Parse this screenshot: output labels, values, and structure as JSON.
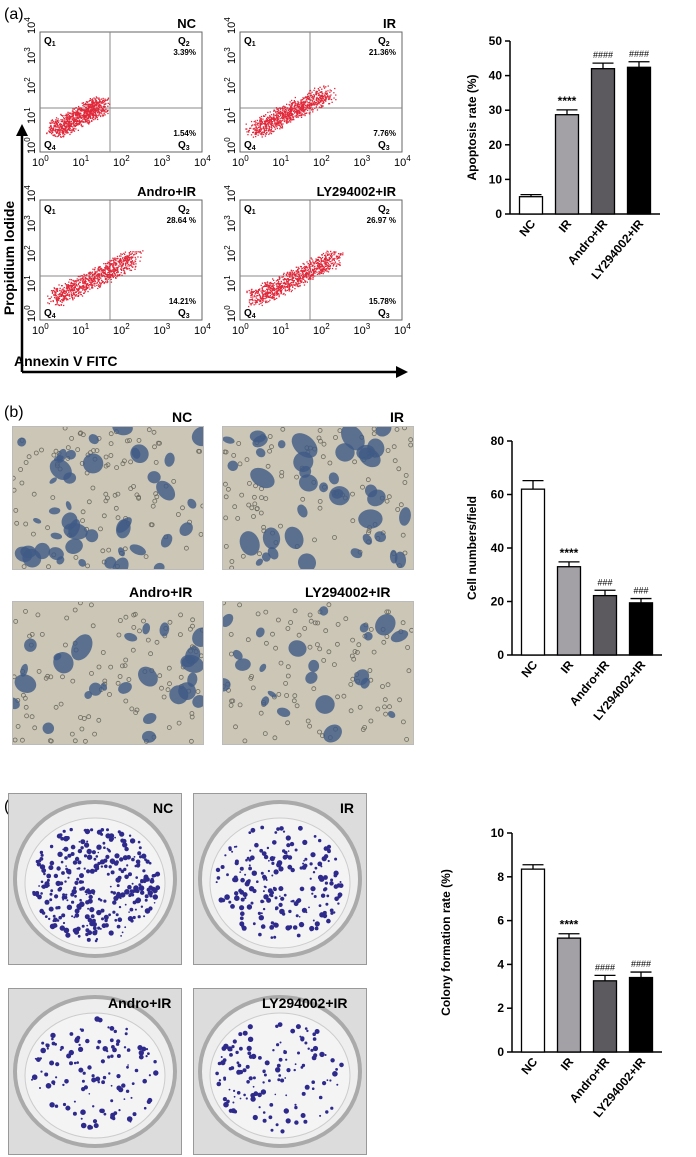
{
  "panel_a": {
    "label": "(a)",
    "y_axis_label": "Propidium Iodide",
    "x_axis_label": "Annexin V FITC",
    "quadrant_labels": [
      "Q1",
      "Q2",
      "Q3",
      "Q4"
    ],
    "tick_labels": [
      "10",
      "10",
      "10",
      "10",
      "10"
    ],
    "tick_exponents": [
      "0",
      "1",
      "2",
      "3",
      "4"
    ],
    "plots": [
      {
        "name": "NC",
        "q2": "3.39%",
        "q3": "1.54%",
        "spread": 0.2
      },
      {
        "name": "IR",
        "q2": "21.36%",
        "q3": "7.76%",
        "spread": 0.7
      },
      {
        "name": "Andro+IR",
        "q2": "28.64 %",
        "q3": "14.21%",
        "spread": 0.85
      },
      {
        "name": "LY294002+IR",
        "q2": "26.97 %",
        "q3": "15.78%",
        "spread": 0.85
      }
    ]
  },
  "panel_b": {
    "label": "(b)",
    "images": [
      "NC",
      "IR",
      "Andro+IR",
      "LY294002+IR"
    ]
  },
  "panel_c": {
    "label": "(c)",
    "images": [
      "NC",
      "IR",
      "Andro+IR",
      "LY294002+IR"
    ]
  },
  "chart_data": [
    {
      "type": "bar",
      "categories": [
        "NC",
        "IR",
        "Andro+IR",
        "LY294002+IR"
      ],
      "values": [
        5,
        28.7,
        42,
        42.4
      ],
      "errors": [
        0.6,
        1.4,
        1.6,
        1.6
      ],
      "annotations": [
        "",
        "****",
        "####",
        "####"
      ],
      "colors": [
        "#ffffff",
        "#a3a0a6",
        "#5c5a5e",
        "#000000"
      ],
      "ylabel": "Apoptosis rate (%)",
      "ylim": [
        0,
        50
      ],
      "yticks": [
        "0",
        "10",
        "20",
        "30",
        "40",
        "50"
      ],
      "grid": false
    },
    {
      "type": "bar",
      "categories": [
        "NC",
        "IR",
        "Andro+IR",
        "LY294002+IR"
      ],
      "values": [
        62,
        33,
        22.2,
        19.5
      ],
      "errors": [
        3.2,
        1.8,
        2.0,
        1.6
      ],
      "annotations": [
        "",
        "****",
        "###",
        "###"
      ],
      "colors": [
        "#ffffff",
        "#a3a0a6",
        "#5c5a5e",
        "#000000"
      ],
      "ylabel": "Cell numbers/field",
      "ylim": [
        0,
        80
      ],
      "yticks": [
        "0",
        "20",
        "40",
        "60",
        "80"
      ],
      "grid": false
    },
    {
      "type": "bar",
      "categories": [
        "NC",
        "IR",
        "Andro+IR",
        "LY294002+IR"
      ],
      "values": [
        8.35,
        5.2,
        3.25,
        3.4
      ],
      "errors": [
        0.2,
        0.2,
        0.25,
        0.25
      ],
      "annotations": [
        "",
        "****",
        "####",
        "####"
      ],
      "colors": [
        "#ffffff",
        "#a3a0a6",
        "#5c5a5e",
        "#000000"
      ],
      "ylabel": "Colony formation rate (%)",
      "ylim": [
        0,
        10
      ],
      "yticks": [
        "0",
        "2",
        "4",
        "6",
        "8",
        "10"
      ],
      "grid": false
    }
  ]
}
